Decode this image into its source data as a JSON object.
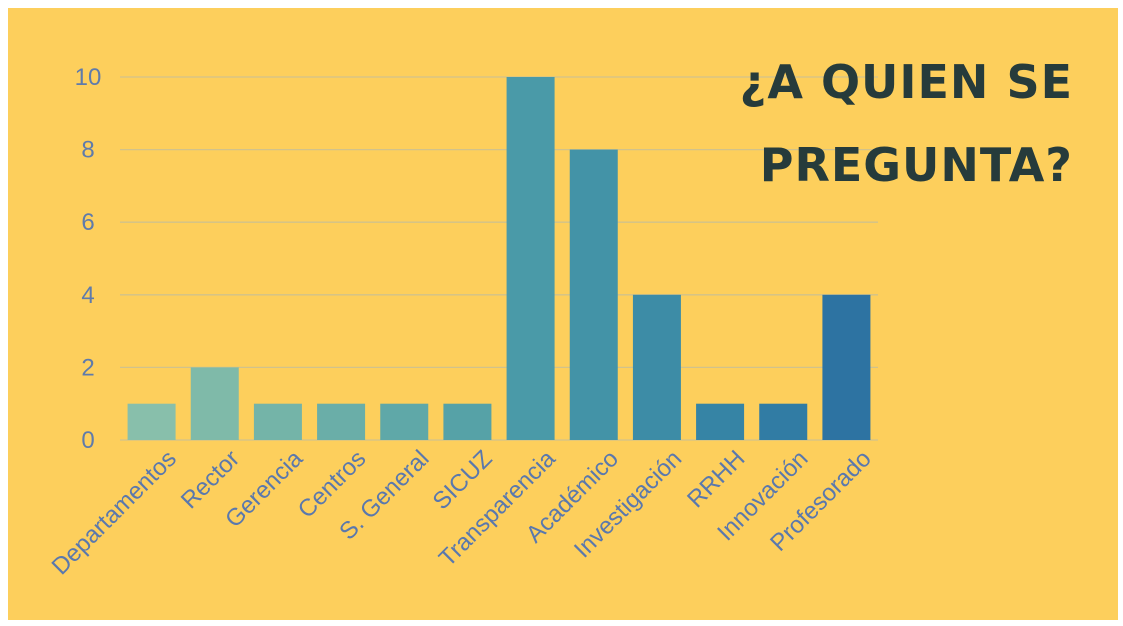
{
  "chart_data": {
    "type": "bar",
    "title_lines": [
      "¿A QUIEN SE",
      "PREGUNTA?"
    ],
    "xlabel": "",
    "ylabel": "",
    "ylim": [
      0,
      10
    ],
    "yticks": [
      "0",
      "2",
      "4",
      "6",
      "8",
      "10"
    ],
    "grid": true,
    "categories": [
      "Departamentos",
      "Rector",
      "Gerencia",
      "Centros",
      "S. General",
      "SICUZ",
      "Transparencia",
      "Académico",
      "Investigación",
      "RRHH",
      "Innovación",
      "Profesorado"
    ],
    "values": [
      1,
      2,
      1,
      1,
      1,
      1,
      10,
      8,
      4,
      1,
      1,
      4
    ],
    "bar_colors": [
      "#88bfab",
      "#7fbaa9",
      "#74b4a8",
      "#6aaea8",
      "#5fa8a8",
      "#56a2a7",
      "#4a9aa8",
      "#4393a7",
      "#3d8ca6",
      "#3684a5",
      "#317ca4",
      "#2d73a2"
    ],
    "background": "#fdcf5c",
    "title_color": "#263b3b",
    "axis_text_color": "#5a78ad",
    "grid_color": "#d1c28b"
  }
}
